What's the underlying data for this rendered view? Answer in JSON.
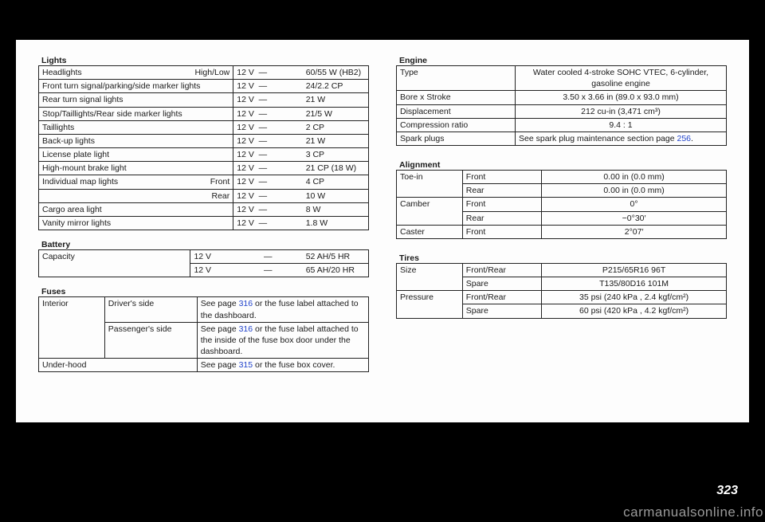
{
  "page_number": "323",
  "watermark": "carmanualsonline.info",
  "page_refs": {
    "p316": "316",
    "p315": "315",
    "p256": "256"
  },
  "sections": {
    "lights": {
      "title": "Lights",
      "rows": [
        {
          "label": "Headlights",
          "sub": "High/Low",
          "v": "12 V",
          "spec": "60/55 W (HB2)"
        },
        {
          "label": "Front turn signal/parking/side marker lights",
          "sub": "",
          "v": "12 V",
          "spec": "24/2.2 CP"
        },
        {
          "label": "Rear turn signal lights",
          "sub": "",
          "v": "12 V",
          "spec": "21 W"
        },
        {
          "label": "Stop/Taillights/Rear side marker lights",
          "sub": "",
          "v": "12 V",
          "spec": "21/5 W"
        },
        {
          "label": "Taillights",
          "sub": "",
          "v": "12 V",
          "spec": "2 CP"
        },
        {
          "label": "Back-up lights",
          "sub": "",
          "v": "12 V",
          "spec": "21 W"
        },
        {
          "label": "License plate light",
          "sub": "",
          "v": "12 V",
          "spec": "3 CP"
        },
        {
          "label": "High-mount brake light",
          "sub": "",
          "v": "12 V",
          "spec": "21 CP (18 W)"
        },
        {
          "label": "Individual map lights",
          "sub": "Front",
          "v": "12 V",
          "spec": "4 CP"
        },
        {
          "label": "",
          "sub": "Rear",
          "v": "12 V",
          "spec": "10 W"
        },
        {
          "label": "Cargo area light",
          "sub": "",
          "v": "12 V",
          "spec": "8 W"
        },
        {
          "label": "Vanity mirror lights",
          "sub": "",
          "v": "12 V",
          "spec": "1.8 W"
        }
      ]
    },
    "battery": {
      "title": "Battery",
      "label": "Capacity",
      "r1": {
        "v": "12 V",
        "spec": "52 AH/5 HR"
      },
      "r2": {
        "v": "12 V",
        "spec": "65 AH/20 HR"
      }
    },
    "fuses": {
      "title": "Fuses",
      "rows": [
        {
          "a": "Interior",
          "b": "Driver's side",
          "c_pre": "See page ",
          "c_post": " or the fuse label attached to the dashboard.",
          "link": "p316"
        },
        {
          "a": "",
          "b": "Passenger's side",
          "c_pre": "See page ",
          "c_post": " or the fuse label attached to the inside of the fuse box door under the dashboard.",
          "link": "p316"
        },
        {
          "a": "Under-hood",
          "b": "",
          "c_pre": "See page ",
          "c_post": " or the fuse box cover.",
          "link": "p315"
        }
      ]
    },
    "engine": {
      "title": "Engine",
      "rows": [
        {
          "label": "Type",
          "spec": "Water cooled 4-stroke SOHC VTEC, 6-cylinder, gasoline engine"
        },
        {
          "label": "Bore x Stroke",
          "spec": "3.50 x 3.66 in (89.0 x 93.0 mm)"
        },
        {
          "label": "Displacement",
          "spec": "212 cu-in (3,471 cm³)"
        },
        {
          "label": "Compression ratio",
          "spec": "9.4 : 1"
        },
        {
          "label": "Spark plugs",
          "spec_pre": "See spark plug maintenance sec­tion page ",
          "spec_post": ".",
          "link": "p256"
        }
      ]
    },
    "alignment": {
      "title": "Alignment",
      "rows": [
        {
          "a": "Toe-in",
          "b": "Front",
          "spec": "0.00 in (0.0 mm)"
        },
        {
          "a": "",
          "b": "Rear",
          "spec": "0.00 in (0.0 mm)"
        },
        {
          "a": "Camber",
          "b": "Front",
          "spec": "0°"
        },
        {
          "a": "",
          "b": "Rear",
          "spec": "−0°30′"
        },
        {
          "a": "Caster",
          "b": "Front",
          "spec": "2°07′"
        }
      ]
    },
    "tires": {
      "title": "Tires",
      "rows": [
        {
          "a": "Size",
          "b": "Front/Rear",
          "spec": "P215/65R16 96T"
        },
        {
          "a": "",
          "b": "Spare",
          "spec": "T135/80D16 101M"
        },
        {
          "a": "Pressure",
          "b": "Front/Rear",
          "spec": "35 psi (240 kPa , 2.4 kgf/cm²)"
        },
        {
          "a": "",
          "b": "Spare",
          "spec": "60 psi (420 kPa , 4.2 kgf/cm²)"
        }
      ]
    }
  }
}
